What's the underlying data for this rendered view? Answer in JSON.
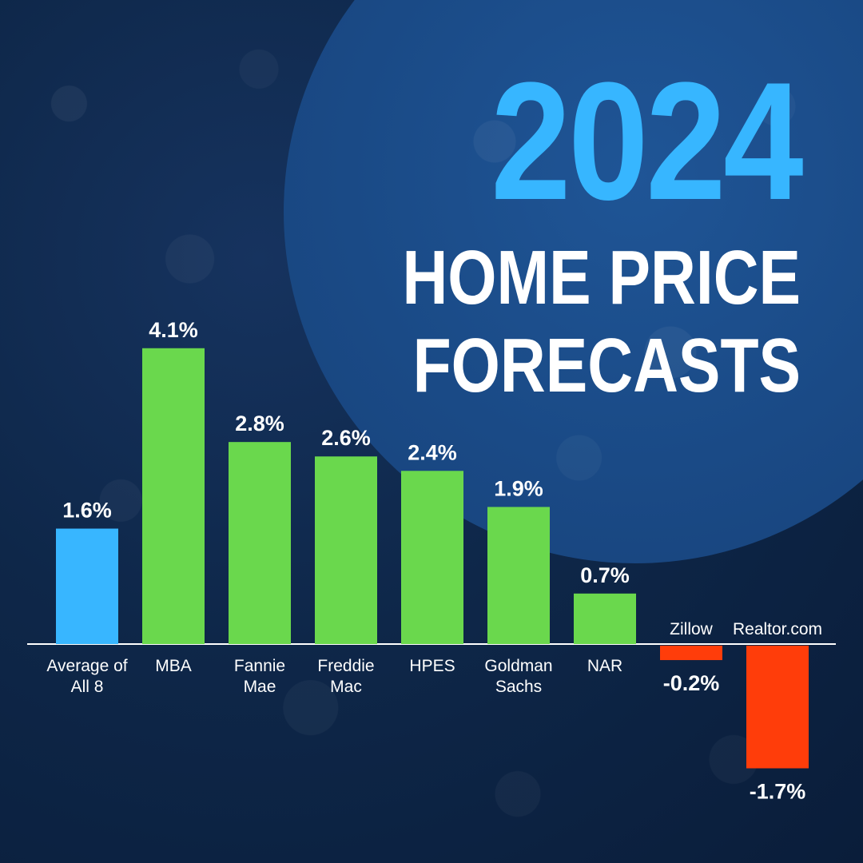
{
  "title": {
    "year": "2024",
    "line1": "HOME PRICE",
    "line2": "FORECASTS"
  },
  "colors": {
    "average": "#38b6ff",
    "positive": "#6ad84d",
    "negative": "#ff3d0a",
    "axis": "#ffffff",
    "year": "#37b6ff"
  },
  "chart_data": {
    "type": "bar",
    "categories": [
      [
        "Average of",
        "All 8"
      ],
      [
        "MBA"
      ],
      [
        "Fannie",
        "Mae"
      ],
      [
        "Freddie",
        "Mac"
      ],
      [
        "HPES"
      ],
      [
        "Goldman",
        "Sachs"
      ],
      [
        "NAR"
      ],
      [
        "Zillow"
      ],
      [
        "Realtor.com"
      ]
    ],
    "values": [
      1.6,
      4.1,
      2.8,
      2.6,
      2.4,
      1.9,
      0.7,
      -0.2,
      -1.7
    ],
    "value_labels": [
      "1.6%",
      "4.1%",
      "2.8%",
      "2.6%",
      "2.4%",
      "1.9%",
      "0.7%",
      "-0.2%",
      "-1.7%"
    ],
    "ylim": [
      -1.7,
      4.1
    ],
    "grid": false,
    "legend": "none",
    "highlight_index": 0
  }
}
